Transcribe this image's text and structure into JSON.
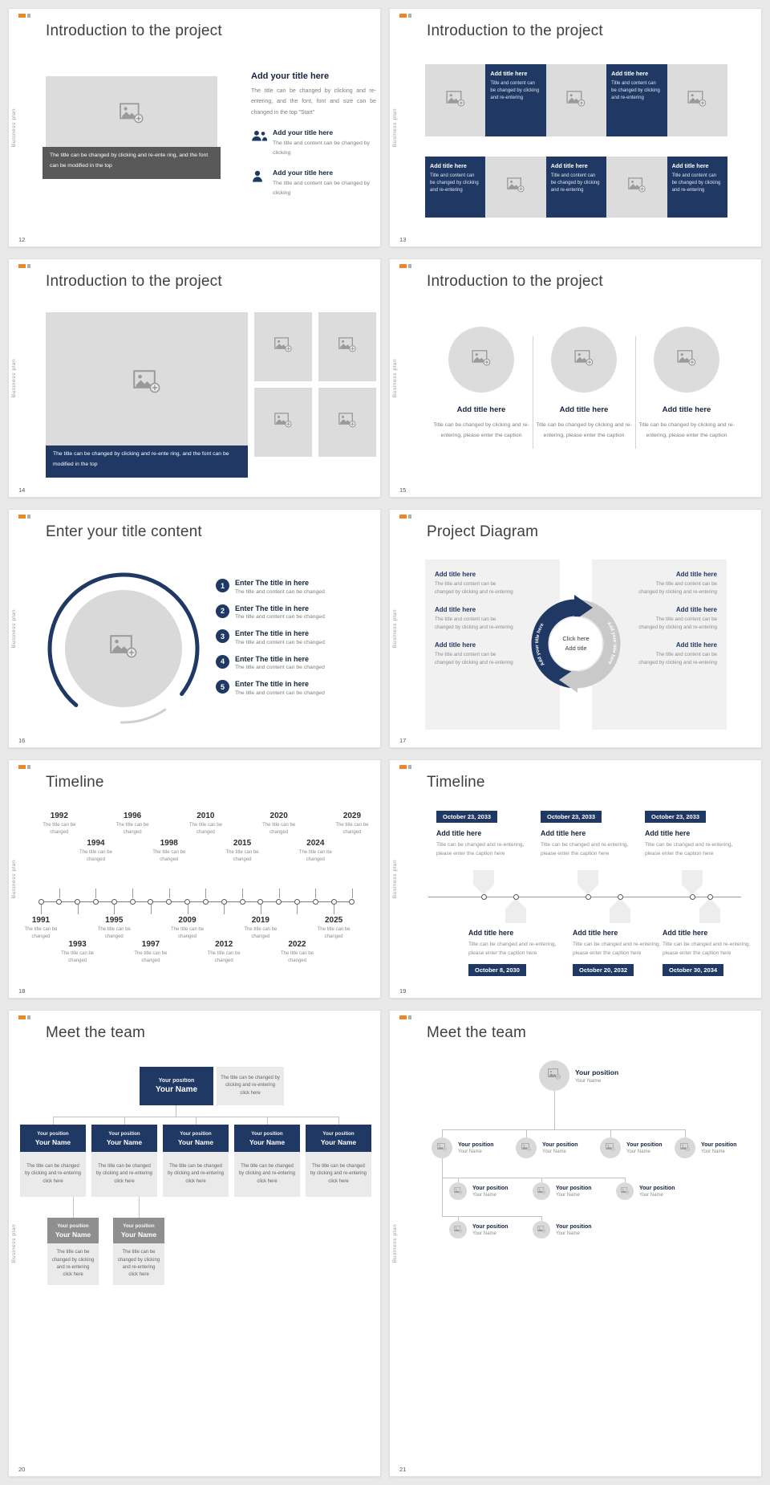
{
  "deck": {
    "side_label": "Business plan",
    "colors": {
      "navy": "#1F3864",
      "placeholder_gray": "#DCDCDC",
      "caption_gray": "#595959",
      "accent_orange": "#E8892B"
    }
  },
  "slides": {
    "s12": {
      "page": "12",
      "title": "Introduction to the project",
      "image_caption": "The title can be changed by clicking and re-ente ring, and the font can be modified in the top",
      "heading": "Add your title here",
      "body": "The title can be changed by clicking and re-entering, and the font, font and size can be changed in the top \"Start\"",
      "item1_heading": "Add your title here",
      "item1_body": "The title and content can be changed by clicking",
      "item2_heading": "Add your title here",
      "item2_body": "The title and content can be changed by clicking"
    },
    "s13": {
      "page": "13",
      "title": "Introduction to the project",
      "tile_heading": "Add title here",
      "tile_body": "Title and content can be changed by clicking and re-entering"
    },
    "s14": {
      "page": "14",
      "title": "Introduction to the project",
      "image_caption": "The title can be changed by clicking and re-ente ring, and the font can be modified in the top"
    },
    "s15": {
      "page": "15",
      "title": "Introduction to the project",
      "heading": "Add title here",
      "body": "Title can be changed by clicking and re-entering, please enter the caption"
    },
    "s16": {
      "page": "16",
      "title": "Enter your title content",
      "items": [
        {
          "num": "1",
          "heading": "Enter The title in here",
          "body": "The title and content can be changed"
        },
        {
          "num": "2",
          "heading": "Enter The title in here",
          "body": "The title and content can be changed"
        },
        {
          "num": "3",
          "heading": "Enter The title in here",
          "body": "The title and content can be changed"
        },
        {
          "num": "4",
          "heading": "Enter The title in here",
          "body": "The title and content can be changed"
        },
        {
          "num": "5",
          "heading": "Enter The title in here",
          "body": "The title and content can be changed"
        }
      ]
    },
    "s17": {
      "page": "17",
      "title": "Project Diagram",
      "item_heading": "Add title here",
      "item_body": "The title and content can be changed by clicking and re-entering",
      "center_top": "Click here",
      "center_bottom": "Add title",
      "ring_text_left": "Add your title here",
      "ring_text_right": "Add your title here"
    },
    "s18": {
      "page": "18",
      "title": "Timeline",
      "caption": "The title can be changed",
      "top_years": [
        "1992",
        "1994",
        "1996",
        "1998",
        "2010",
        "2015",
        "2020",
        "2024",
        "2029"
      ],
      "bottom_years": [
        "1991",
        "1993",
        "1995",
        "1997",
        "2009",
        "2012",
        "2019",
        "2022",
        "2025"
      ]
    },
    "s19": {
      "page": "19",
      "title": "Timeline",
      "heading": "Add title here",
      "body": "Title can be changed and re-entering, please enter the caption here",
      "top_dates": [
        "October 23, 2033",
        "October 23, 2033",
        "October 23, 2033"
      ],
      "bottom_dates": [
        "October 8, 2030",
        "October 20, 2032",
        "October 30, 2034"
      ]
    },
    "s20": {
      "page": "20",
      "title": "Meet the team",
      "position": "Your position",
      "name": "Your Name",
      "note": "The title can be changed by clicking and re-entering click here"
    },
    "s21": {
      "page": "21",
      "title": "Meet the team",
      "position": "Your position",
      "name": "Your Name"
    }
  }
}
